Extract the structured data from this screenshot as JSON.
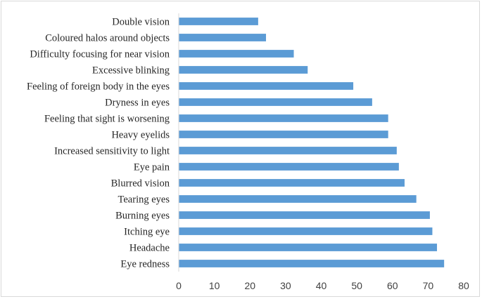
{
  "chart_data": {
    "type": "bar",
    "orientation": "horizontal",
    "categories": [
      "Eye redness",
      "Headache",
      "Itching eye",
      "Burning eyes",
      "Tearing eyes",
      "Blurred vision",
      "Eye pain",
      "Increased sensitivity to light",
      "Heavy eyelids",
      "Feeling that sight is worsening",
      "Dryness in eyes",
      "Feeling of foreign body in the eyes",
      "Excessive blinking",
      "Difficulty focusing for near vision",
      "Coloured halos around objects",
      "Double vision"
    ],
    "values": [
      74.5,
      72.5,
      71.2,
      70.5,
      66.7,
      63.4,
      61.8,
      61.2,
      58.8,
      58.8,
      54.3,
      49.0,
      36.2,
      32.3,
      24.5,
      22.3
    ],
    "xlim": [
      0,
      80
    ],
    "xticks": [
      "0",
      "10",
      "20",
      "30",
      "40",
      "50",
      "60",
      "70",
      "80"
    ],
    "grid": false,
    "legend": "none",
    "bar_color": "#5b9bd5",
    "title": "",
    "xlabel": "",
    "ylabel": ""
  }
}
